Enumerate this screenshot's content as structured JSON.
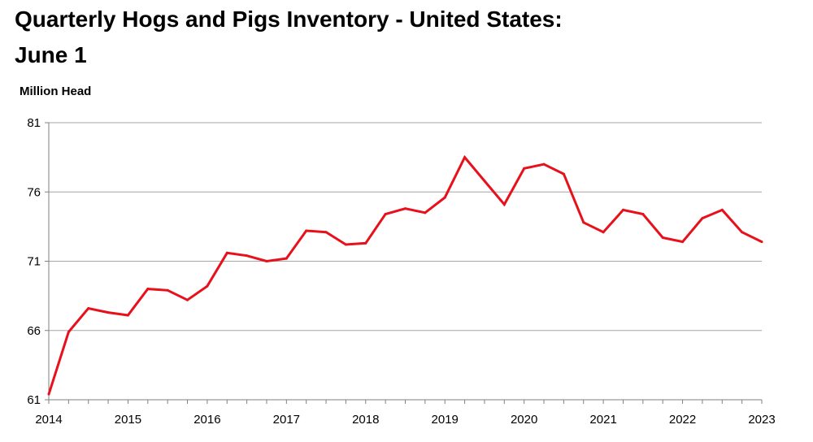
{
  "chart_data": {
    "type": "line",
    "title": "Quarterly Hogs and Pigs Inventory - United States: June 1",
    "title_lines": [
      "Quarterly Hogs and Pigs Inventory - United States:",
      "June 1"
    ],
    "xlabel": "",
    "ylabel": "Million Head",
    "xlim": [
      2014,
      2023
    ],
    "ylim": [
      61,
      81
    ],
    "y_ticks": [
      61,
      66,
      71,
      76,
      81
    ],
    "x_ticks": [
      "2014",
      "2015",
      "2016",
      "2017",
      "2018",
      "2019",
      "2020",
      "2021",
      "2022",
      "2023"
    ],
    "grid": true,
    "legend": "none",
    "line_color": "#e8101a",
    "series": [
      {
        "x": [
          2014.0,
          2014.25,
          2014.5,
          2014.75,
          2015.0,
          2015.25,
          2015.5,
          2015.75,
          2016.0,
          2016.25,
          2016.5,
          2016.75,
          2017.0,
          2017.25,
          2017.5,
          2017.75,
          2018.0,
          2018.25,
          2018.5,
          2018.75,
          2019.0,
          2019.25,
          2019.5,
          2019.75,
          2020.0,
          2020.25,
          2020.5,
          2020.75,
          2021.0,
          2021.25,
          2021.5,
          2021.75,
          2022.0,
          2022.25,
          2022.5,
          2022.75,
          2023.0
        ],
        "values": [
          61.4,
          65.9,
          67.6,
          67.3,
          67.1,
          69.0,
          68.9,
          68.2,
          69.2,
          71.6,
          71.4,
          71.0,
          71.2,
          73.2,
          73.1,
          72.2,
          72.3,
          74.4,
          74.8,
          74.5,
          75.6,
          78.5,
          76.8,
          75.1,
          77.7,
          78.0,
          77.3,
          73.8,
          73.1,
          74.7,
          74.4,
          72.7,
          72.4,
          74.1,
          74.7,
          73.1,
          72.4
        ]
      }
    ]
  }
}
